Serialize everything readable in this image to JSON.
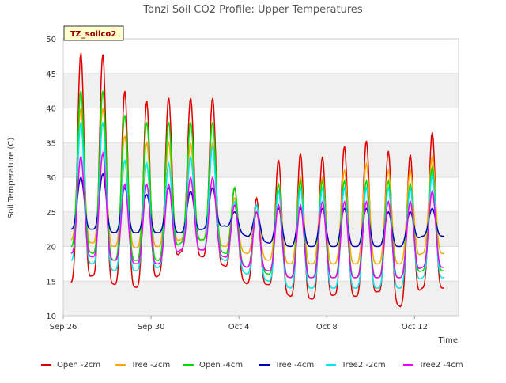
{
  "chart_data": {
    "type": "line",
    "title": "Tonzi Soil CO2 Profile: Upper Temperatures",
    "xlabel": "Time",
    "ylabel": "Soil Temperature (C)",
    "badge": "TZ_soilco2",
    "ylim": [
      10,
      50
    ],
    "yticks": [
      10,
      15,
      20,
      25,
      30,
      35,
      40,
      45,
      50
    ],
    "xlim": [
      "2023-09-26",
      "2023-10-14"
    ],
    "xticks": [
      {
        "date": "2023-09-26",
        "label": "Sep 26"
      },
      {
        "date": "2023-09-30",
        "label": "Sep 30"
      },
      {
        "date": "2023-10-04",
        "label": "Oct 4"
      },
      {
        "date": "2023-10-08",
        "label": "Oct 8"
      },
      {
        "date": "2023-10-12",
        "label": "Oct 12"
      }
    ],
    "grid": true,
    "background_bands": true,
    "legend_position": "bottom",
    "series": [
      {
        "name": "Open -2cm",
        "color": "#dd0000",
        "daily_max": [
          48,
          47.8,
          42.5,
          41,
          41.5,
          41.5,
          41.5,
          28.5,
          27,
          32.5,
          33.5,
          33,
          34.5,
          35.3,
          33.8,
          33.3,
          36.5
        ],
        "daily_min": [
          14.8,
          15.8,
          14.5,
          14.1,
          15.8,
          19.2,
          18.5,
          17.2,
          14.6,
          14.5,
          12.8,
          12.4,
          13.0,
          12.8,
          13.5,
          11.3,
          14.0
        ]
      },
      {
        "name": "Tree -2cm",
        "color": "#ffa500",
        "daily_max": [
          40,
          40,
          36,
          35,
          35,
          35,
          35,
          27,
          26,
          29,
          30,
          30,
          31,
          32,
          31,
          31,
          33
        ],
        "daily_min": [
          21,
          20.5,
          20,
          19.8,
          20,
          21,
          21,
          20,
          19,
          18,
          17.5,
          17.5,
          17.5,
          17.5,
          17.5,
          17.5,
          19
        ]
      },
      {
        "name": "Open -4cm",
        "color": "#00dd00",
        "daily_max": [
          42.5,
          42.5,
          39,
          38,
          38,
          38,
          38,
          28.5,
          26,
          29,
          29.5,
          29.5,
          29.5,
          29.5,
          29.5,
          29,
          31.5
        ],
        "daily_min": [
          20,
          19,
          18,
          18,
          18,
          20.5,
          21,
          19,
          17,
          16,
          15.5,
          15.5,
          15.5,
          15.5,
          15.5,
          15.5,
          16.5
        ]
      },
      {
        "name": "Tree -4cm",
        "color": "#0000bb",
        "daily_max": [
          30,
          30.5,
          28.5,
          27.5,
          28.5,
          28,
          28.5,
          25,
          25,
          25.5,
          25.5,
          25.5,
          25.5,
          25.5,
          25,
          25,
          25.5
        ],
        "daily_min": [
          22.5,
          22.5,
          22,
          22,
          22,
          22,
          22.5,
          23,
          21.5,
          20.5,
          20,
          20,
          20,
          20,
          20,
          20,
          21.5
        ]
      },
      {
        "name": "Tree2 -2cm",
        "color": "#00e5ee",
        "daily_max": [
          38,
          38,
          32.5,
          32,
          32,
          33,
          34.5,
          26.5,
          26,
          28,
          28.5,
          28.5,
          28.5,
          28.5,
          28.5,
          28.5,
          30.5
        ],
        "daily_min": [
          18,
          17.5,
          16.5,
          16.5,
          17,
          19.5,
          19.5,
          18,
          16,
          15,
          14,
          14,
          14,
          14,
          14,
          14,
          15.5
        ]
      },
      {
        "name": "Tree2 -4cm",
        "color": "#ee00ee",
        "daily_max": [
          33,
          33.5,
          29,
          29,
          29,
          30,
          30,
          26,
          25,
          26,
          26,
          26.5,
          26.5,
          26.5,
          26.5,
          26.5,
          28
        ],
        "daily_min": [
          19,
          18.5,
          18,
          17.5,
          17.5,
          19.5,
          19.5,
          18.5,
          17,
          16.5,
          15.5,
          15.5,
          15.5,
          15.5,
          15.5,
          15.5,
          17
        ]
      }
    ]
  }
}
